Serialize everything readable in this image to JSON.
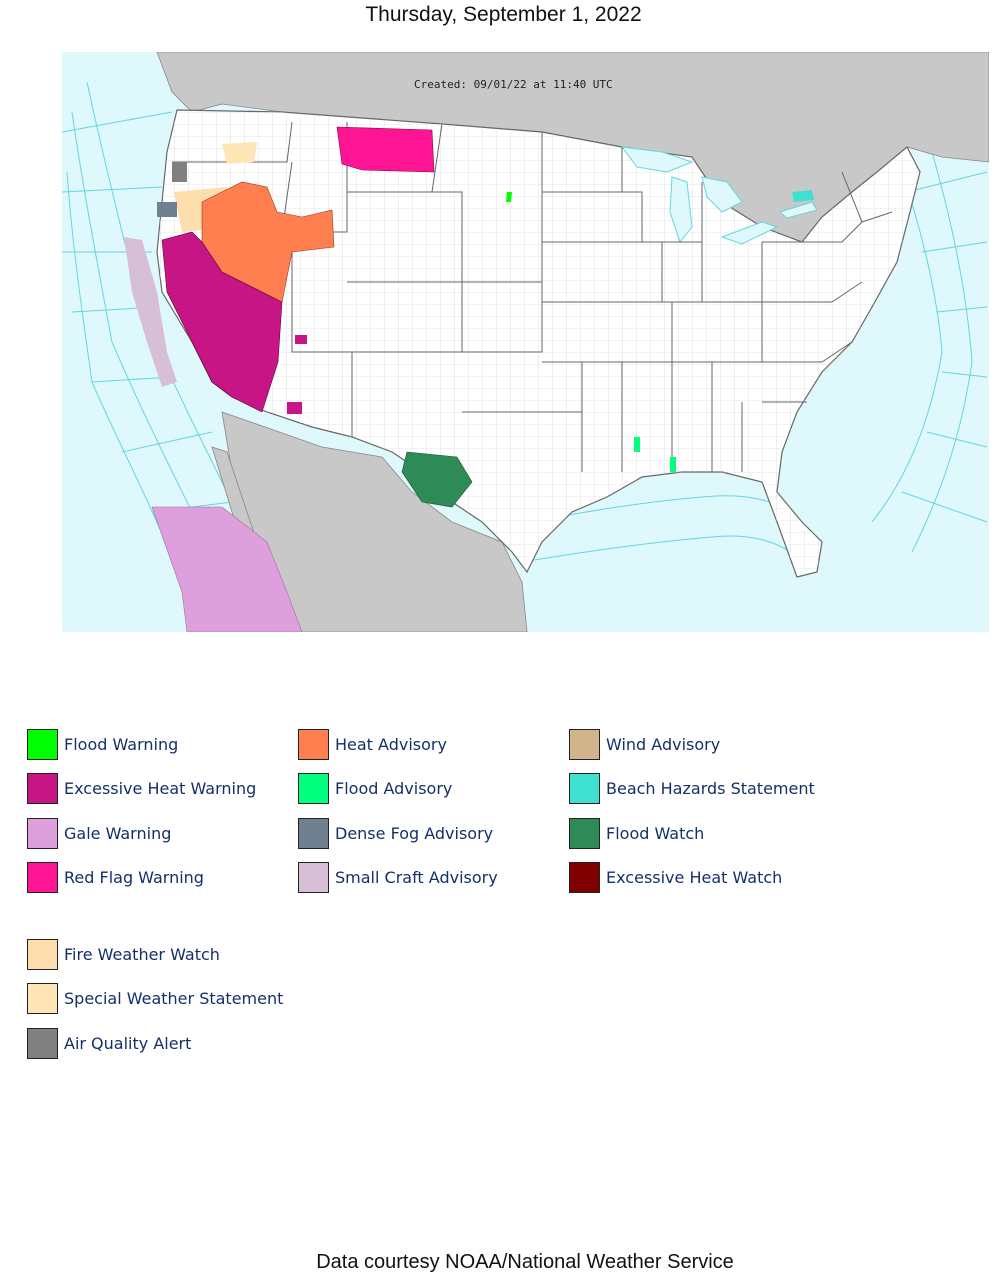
{
  "header": {
    "date": "Thursday, September 1, 2022"
  },
  "map": {
    "created_stamp": "Created: 09/01/22 at 11:40 UTC",
    "colors": {
      "ocean": "#dff8fb",
      "marine_zone_line": "#63d6df",
      "land_us": "#ffffff",
      "land_other": "#c8c8c8",
      "county_line": "#c9c9c9",
      "state_line": "#666666"
    }
  },
  "legend": {
    "columns": [
      [
        {
          "label": "Flood Warning",
          "color": "#00ff00"
        },
        {
          "label": "Excessive Heat Warning",
          "color": "#c71585"
        },
        {
          "label": "Gale Warning",
          "color": "#dda0dd"
        },
        {
          "label": "Red Flag Warning",
          "color": "#ff1493"
        }
      ],
      [
        {
          "label": "Heat Advisory",
          "color": "#ff7f50"
        },
        {
          "label": "Flood Advisory",
          "color": "#00ff7f"
        },
        {
          "label": "Dense Fog Advisory",
          "color": "#708090"
        },
        {
          "label": "Small Craft Advisory",
          "color": "#d8bfd8"
        }
      ],
      [
        {
          "label": "Wind Advisory",
          "color": "#d2b48c"
        },
        {
          "label": "Beach Hazards Statement",
          "color": "#40e0d0"
        },
        {
          "label": "Flood Watch",
          "color": "#2e8b57"
        },
        {
          "label": "Excessive Heat Watch",
          "color": "#800000"
        }
      ]
    ],
    "extra": [
      {
        "label": "Fire Weather Watch",
        "color": "#ffdead"
      },
      {
        "label": "Special Weather Statement",
        "color": "#ffe4b5"
      },
      {
        "label": "Air Quality Alert",
        "color": "#808080"
      }
    ]
  },
  "footer": {
    "credit": "Data courtesy NOAA/National Weather Service"
  }
}
